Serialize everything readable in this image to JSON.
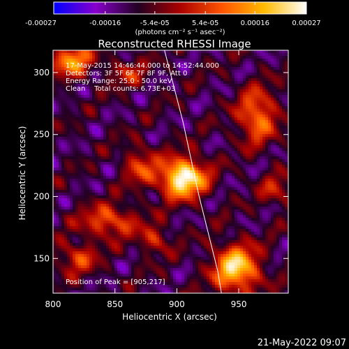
{
  "colorbar": {
    "ticks": [
      "-0.00027",
      "-0.00016",
      "-5.4e-05",
      "5.4e-05",
      "0.00016",
      "0.00027"
    ],
    "tick_values": [
      -0.00027,
      -0.00016,
      -5.4e-05,
      5.4e-05,
      0.00016,
      0.00027
    ],
    "range": [
      -0.00027,
      0.00027
    ],
    "units_text": "(photons cm⁻² s⁻¹ asec⁻²)",
    "colormap": [
      "#0000ff",
      "#8800cc",
      "#220022",
      "#aa0000",
      "#ff5500",
      "#ffbb00",
      "#ffffff"
    ]
  },
  "overlay": {
    "time_line": "17-May-2015 14:46:44.000 to 14:52:44.000",
    "detectors_line": "Detectors: 3F 5F 6F 7F 8F 9F, Att 0",
    "energy_line": "Energy Range: 25.0 - 50.0 keV",
    "clean_line": "Clean    Total counts: 6.73E+03",
    "peak_line": "Position of Peak = [905,217]"
  },
  "footer": {
    "date": "21-May-2022 09:07"
  },
  "chart_data": {
    "type": "heatmap",
    "title": "Reconstructed RHESSI Image",
    "xlabel": "Heliocentric X (arcsec)",
    "ylabel": "Heliocentric Y (arcsec)",
    "xlim": [
      800,
      990
    ],
    "ylim": [
      122,
      318
    ],
    "xticks": [
      800,
      850,
      900,
      950
    ],
    "yticks": [
      150,
      200,
      250,
      300
    ],
    "xtick_labels": [
      "800",
      "850",
      "900",
      "950"
    ],
    "ytick_labels": [
      "150",
      "200",
      "250",
      "300"
    ],
    "peak": [
      905,
      217
    ],
    "limb_line": [
      [
        890,
        318
      ],
      [
        905,
        260
      ],
      [
        918,
        200
      ],
      [
        933,
        140
      ],
      [
        936,
        122
      ]
    ],
    "sources": [
      {
        "x": 905,
        "y": 215,
        "sx": 13,
        "sy": 11,
        "amp": 1.15
      },
      {
        "x": 948,
        "y": 142,
        "sx": 13,
        "sy": 13,
        "amp": 0.95
      },
      {
        "x": 965,
        "y": 265,
        "sx": 11,
        "sy": 15,
        "amp": 0.65
      },
      {
        "x": 815,
        "y": 310,
        "sx": 11,
        "sy": 9,
        "amp": 0.75
      },
      {
        "x": 845,
        "y": 180,
        "sx": 16,
        "sy": 9,
        "amp": 0.55
      },
      {
        "x": 870,
        "y": 225,
        "sx": 9,
        "sy": 11,
        "amp": 0.45
      },
      {
        "x": 820,
        "y": 150,
        "sx": 11,
        "sy": 9,
        "amp": 0.45
      },
      {
        "x": 980,
        "y": 205,
        "sx": 9,
        "sy": 9,
        "amp": 0.35
      },
      {
        "x": 882,
        "y": 165,
        "sx": 9,
        "sy": 8,
        "amp": 0.4
      },
      {
        "x": 860,
        "y": 300,
        "sx": 10,
        "sy": 8,
        "amp": 0.35
      }
    ]
  }
}
